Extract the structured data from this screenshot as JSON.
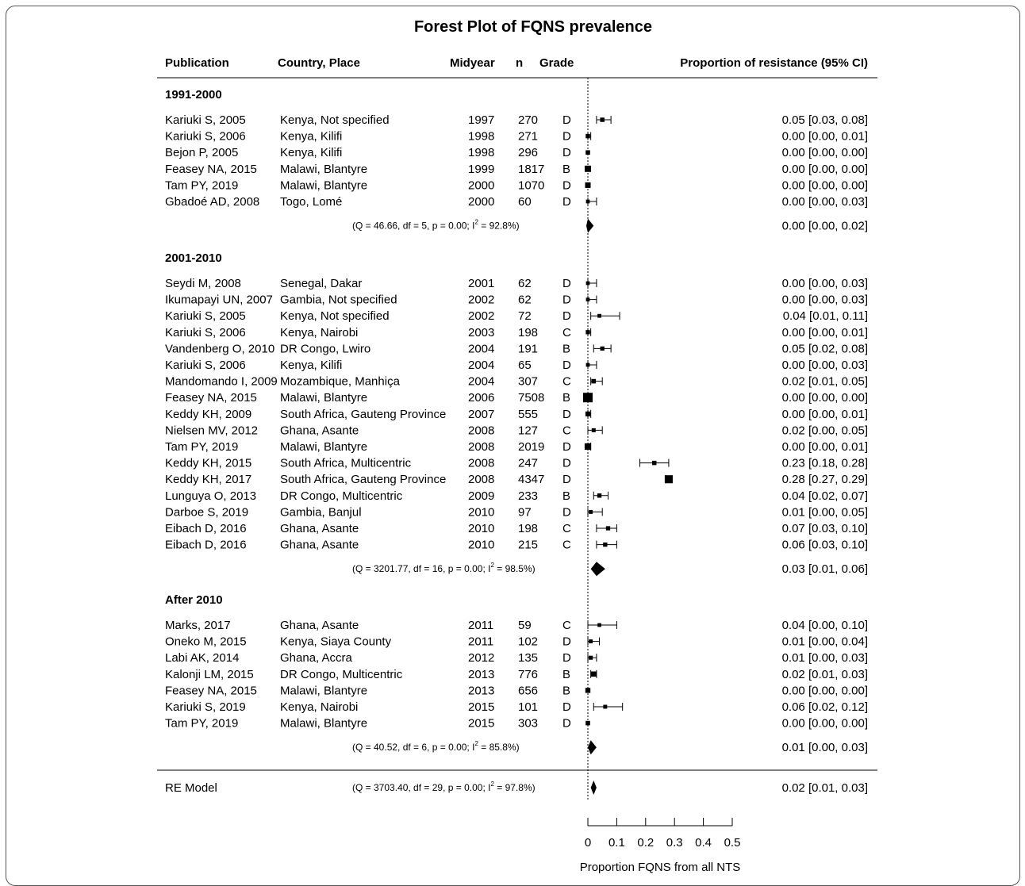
{
  "chart_data": {
    "type": "forest",
    "title": "Forest Plot of FQNS prevalence",
    "xlabel": "Proportion FQNS from all NTS",
    "xlim": [
      0,
      0.5
    ],
    "xticks": [
      "0",
      "0.1",
      "0.2",
      "0.3",
      "0.4",
      "0.5"
    ],
    "reference_line": 0,
    "columns": {
      "publication": "Publication",
      "country": "Country, Place",
      "midyear": "Midyear",
      "n": "n",
      "grade": "Grade",
      "estimate": "Proportion of resistance (95% CI)"
    },
    "groups": [
      {
        "label": "1991-2000",
        "studies": [
          {
            "publication": "Kariuki S, 2005",
            "country": "Kenya, Not specified",
            "midyear": "1997",
            "n": "270",
            "grade": "D",
            "est": 0.05,
            "lo": 0.03,
            "hi": 0.08,
            "ci_text": "0.05 [0.03, 0.08]"
          },
          {
            "publication": "Kariuki S, 2006",
            "country": "Kenya, Kilifi",
            "midyear": "1998",
            "n": "271",
            "grade": "D",
            "est": 0.0,
            "lo": 0.0,
            "hi": 0.01,
            "ci_text": "0.00 [0.00, 0.01]"
          },
          {
            "publication": "Bejon P, 2005",
            "country": "Kenya, Kilifi",
            "midyear": "1998",
            "n": "296",
            "grade": "D",
            "est": 0.0,
            "lo": 0.0,
            "hi": 0.0,
            "ci_text": "0.00 [0.00, 0.00]"
          },
          {
            "publication": "Feasey NA, 2015",
            "country": "Malawi, Blantyre",
            "midyear": "1999",
            "n": "1817",
            "grade": "B",
            "est": 0.0,
            "lo": 0.0,
            "hi": 0.0,
            "ci_text": "0.00 [0.00, 0.00]"
          },
          {
            "publication": "Tam PY, 2019",
            "country": "Malawi, Blantyre",
            "midyear": "2000",
            "n": "1070",
            "grade": "D",
            "est": 0.0,
            "lo": 0.0,
            "hi": 0.0,
            "ci_text": "0.00 [0.00, 0.00]"
          },
          {
            "publication": "Gbadoé AD, 2008",
            "country": "Togo, Lomé",
            "midyear": "2000",
            "n": "60",
            "grade": "D",
            "est": 0.0,
            "lo": 0.0,
            "hi": 0.03,
            "ci_text": "0.00 [0.00, 0.03]"
          }
        ],
        "summary": {
          "het_prefix": "(Q = 46.66, df = 5, p = 0.00; I",
          "het_sup": "2",
          "het_suffix": " = 92.8%)",
          "est": 0.0,
          "lo": 0.0,
          "hi": 0.02,
          "ci_text": "0.00 [0.00, 0.02]"
        }
      },
      {
        "label": "2001-2010",
        "studies": [
          {
            "publication": "Seydi M, 2008",
            "country": "Senegal, Dakar",
            "midyear": "2001",
            "n": "62",
            "grade": "D",
            "est": 0.0,
            "lo": 0.0,
            "hi": 0.03,
            "ci_text": "0.00 [0.00, 0.03]"
          },
          {
            "publication": "Ikumapayi UN, 2007",
            "country": "Gambia, Not specified",
            "midyear": "2002",
            "n": "62",
            "grade": "D",
            "est": 0.0,
            "lo": 0.0,
            "hi": 0.03,
            "ci_text": "0.00 [0.00, 0.03]"
          },
          {
            "publication": "Kariuki S, 2005",
            "country": "Kenya, Not specified",
            "midyear": "2002",
            "n": "72",
            "grade": "D",
            "est": 0.04,
            "lo": 0.01,
            "hi": 0.11,
            "ci_text": "0.04 [0.01, 0.11]"
          },
          {
            "publication": "Kariuki S, 2006",
            "country": "Kenya, Nairobi",
            "midyear": "2003",
            "n": "198",
            "grade": "C",
            "est": 0.0,
            "lo": 0.0,
            "hi": 0.01,
            "ci_text": "0.00 [0.00, 0.01]"
          },
          {
            "publication": "Vandenberg O, 2010",
            "country": "DR Congo, Lwiro",
            "midyear": "2004",
            "n": "191",
            "grade": "B",
            "est": 0.05,
            "lo": 0.02,
            "hi": 0.08,
            "ci_text": "0.05 [0.02, 0.08]"
          },
          {
            "publication": "Kariuki S, 2006",
            "country": "Kenya, Kilifi",
            "midyear": "2004",
            "n": "65",
            "grade": "D",
            "est": 0.0,
            "lo": 0.0,
            "hi": 0.03,
            "ci_text": "0.00 [0.00, 0.03]"
          },
          {
            "publication": "Mandomando I, 2009",
            "country": "Mozambique, Manhiça",
            "midyear": "2004",
            "n": "307",
            "grade": "C",
            "est": 0.02,
            "lo": 0.01,
            "hi": 0.05,
            "ci_text": "0.02 [0.01, 0.05]"
          },
          {
            "publication": "Feasey NA, 2015",
            "country": "Malawi, Blantyre",
            "midyear": "2006",
            "n": "7508",
            "grade": "B",
            "est": 0.0,
            "lo": 0.0,
            "hi": 0.0,
            "ci_text": "0.00 [0.00, 0.00]"
          },
          {
            "publication": "Keddy KH, 2009",
            "country": "South Africa, Gauteng Province",
            "midyear": "2007",
            "n": "555",
            "grade": "D",
            "est": 0.0,
            "lo": 0.0,
            "hi": 0.01,
            "ci_text": "0.00 [0.00, 0.01]"
          },
          {
            "publication": "Nielsen MV, 2012",
            "country": "Ghana, Asante",
            "midyear": "2008",
            "n": "127",
            "grade": "C",
            "est": 0.02,
            "lo": 0.0,
            "hi": 0.05,
            "ci_text": "0.02 [0.00, 0.05]"
          },
          {
            "publication": "Tam PY, 2019",
            "country": "Malawi, Blantyre",
            "midyear": "2008",
            "n": "2019",
            "grade": "D",
            "est": 0.0,
            "lo": 0.0,
            "hi": 0.01,
            "ci_text": "0.00 [0.00, 0.01]"
          },
          {
            "publication": "Keddy KH, 2015",
            "country": "South Africa, Multicentric",
            "midyear": "2008",
            "n": "247",
            "grade": "D",
            "est": 0.23,
            "lo": 0.18,
            "hi": 0.28,
            "ci_text": "0.23 [0.18, 0.28]"
          },
          {
            "publication": "Keddy KH, 2017",
            "country": "South Africa, Gauteng Province",
            "midyear": "2008",
            "n": "4347",
            "grade": "D",
            "est": 0.28,
            "lo": 0.27,
            "hi": 0.29,
            "ci_text": "0.28 [0.27, 0.29]"
          },
          {
            "publication": "Lunguya O, 2013",
            "country": "DR Congo, Multicentric",
            "midyear": "2009",
            "n": "233",
            "grade": "B",
            "est": 0.04,
            "lo": 0.02,
            "hi": 0.07,
            "ci_text": "0.04 [0.02, 0.07]"
          },
          {
            "publication": "Darboe S, 2019",
            "country": "Gambia, Banjul",
            "midyear": "2010",
            "n": "97",
            "grade": "D",
            "est": 0.01,
            "lo": 0.0,
            "hi": 0.05,
            "ci_text": "0.01 [0.00, 0.05]"
          },
          {
            "publication": "Eibach D, 2016",
            "country": "Ghana, Asante",
            "midyear": "2010",
            "n": "198",
            "grade": "C",
            "est": 0.07,
            "lo": 0.03,
            "hi": 0.1,
            "ci_text": "0.07 [0.03, 0.10]"
          },
          {
            "publication": "Eibach D, 2016",
            "country": "Ghana, Asante",
            "midyear": "2010",
            "n": "215",
            "grade": "C",
            "est": 0.06,
            "lo": 0.03,
            "hi": 0.1,
            "ci_text": "0.06 [0.03, 0.10]"
          }
        ],
        "summary": {
          "het_prefix": "(Q = 3201.77, df = 16, p = 0.00; I",
          "het_sup": "2",
          "het_suffix": " = 98.5%)",
          "est": 0.03,
          "lo": 0.01,
          "hi": 0.06,
          "ci_text": "0.03 [0.01, 0.06]"
        }
      },
      {
        "label": "After 2010",
        "studies": [
          {
            "publication": "Marks, 2017",
            "country": "Ghana, Asante",
            "midyear": "2011",
            "n": "59",
            "grade": "C",
            "est": 0.04,
            "lo": 0.0,
            "hi": 0.1,
            "ci_text": "0.04 [0.00, 0.10]"
          },
          {
            "publication": "Oneko M, 2015",
            "country": "Kenya, Siaya County",
            "midyear": "2011",
            "n": "102",
            "grade": "D",
            "est": 0.01,
            "lo": 0.0,
            "hi": 0.04,
            "ci_text": "0.01 [0.00, 0.04]"
          },
          {
            "publication": "Labi AK, 2014",
            "country": "Ghana, Accra",
            "midyear": "2012",
            "n": "135",
            "grade": "D",
            "est": 0.01,
            "lo": 0.0,
            "hi": 0.03,
            "ci_text": "0.01 [0.00, 0.03]"
          },
          {
            "publication": "Kalonji LM, 2015",
            "country": "DR Congo, Multicentric",
            "midyear": "2013",
            "n": "776",
            "grade": "B",
            "est": 0.02,
            "lo": 0.01,
            "hi": 0.03,
            "ci_text": "0.02 [0.01, 0.03]"
          },
          {
            "publication": "Feasey NA, 2015",
            "country": "Malawi, Blantyre",
            "midyear": "2013",
            "n": "656",
            "grade": "B",
            "est": 0.0,
            "lo": 0.0,
            "hi": 0.0,
            "ci_text": "0.00 [0.00, 0.00]"
          },
          {
            "publication": "Kariuki S, 2019",
            "country": "Kenya, Nairobi",
            "midyear": "2015",
            "n": "101",
            "grade": "D",
            "est": 0.06,
            "lo": 0.02,
            "hi": 0.12,
            "ci_text": "0.06 [0.02, 0.12]"
          },
          {
            "publication": "Tam PY, 2019",
            "country": "Malawi, Blantyre",
            "midyear": "2015",
            "n": "303",
            "grade": "D",
            "est": 0.0,
            "lo": 0.0,
            "hi": 0.0,
            "ci_text": "0.00 [0.00, 0.00]"
          }
        ],
        "summary": {
          "het_prefix": "(Q = 40.52, df = 6, p = 0.00; I",
          "het_sup": "2",
          "het_suffix": " = 85.8%)",
          "est": 0.01,
          "lo": 0.0,
          "hi": 0.03,
          "ci_text": "0.01 [0.00, 0.03]"
        }
      }
    ],
    "overall": {
      "label": "RE Model",
      "het_prefix": "(Q = 3703.40, df = 29, p = 0.00; I",
      "het_sup": "2",
      "het_suffix": " = 97.8%)",
      "est": 0.02,
      "lo": 0.01,
      "hi": 0.03,
      "ci_text": "0.02 [0.01, 0.03]"
    }
  }
}
